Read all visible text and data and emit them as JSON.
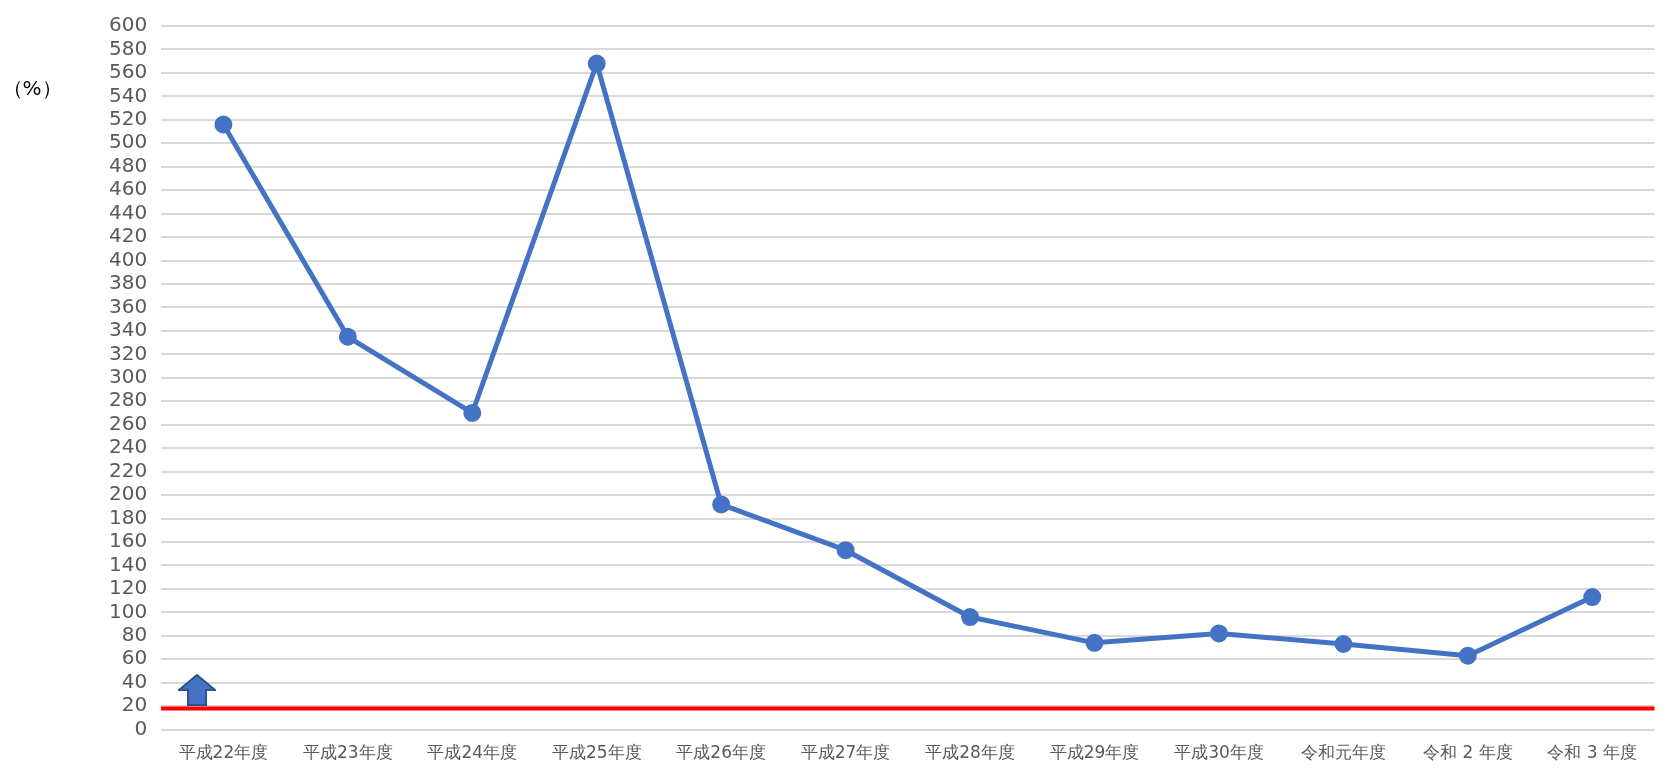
{
  "chart_data": {
    "type": "line",
    "ylabel": "（%）",
    "categories": [
      "平成22年度",
      "平成23年度",
      "平成24年度",
      "平成25年度",
      "平成26年度",
      "平成27年度",
      "平成28年度",
      "平成29年度",
      "平成30年度",
      "令和元年度",
      "令和 2 年度",
      "令和 3 年度"
    ],
    "series": [
      {
        "color": "#4472c4",
        "values": [
          516,
          335,
          270,
          568,
          192,
          153,
          96,
          74,
          82,
          73,
          63,
          113
        ]
      }
    ],
    "ylim": [
      0,
      600
    ],
    "yticks": [
      0,
      20,
      40,
      60,
      80,
      100,
      120,
      140,
      160,
      180,
      200,
      220,
      240,
      260,
      280,
      300,
      320,
      340,
      360,
      380,
      400,
      420,
      440,
      460,
      480,
      500,
      520,
      540,
      560,
      580,
      600
    ],
    "ref_lines": [
      {
        "axis": "y",
        "value": 18,
        "color": "#ff0000"
      }
    ],
    "grid": "y",
    "legend": false,
    "marker": "circle",
    "line_style": "solid"
  }
}
